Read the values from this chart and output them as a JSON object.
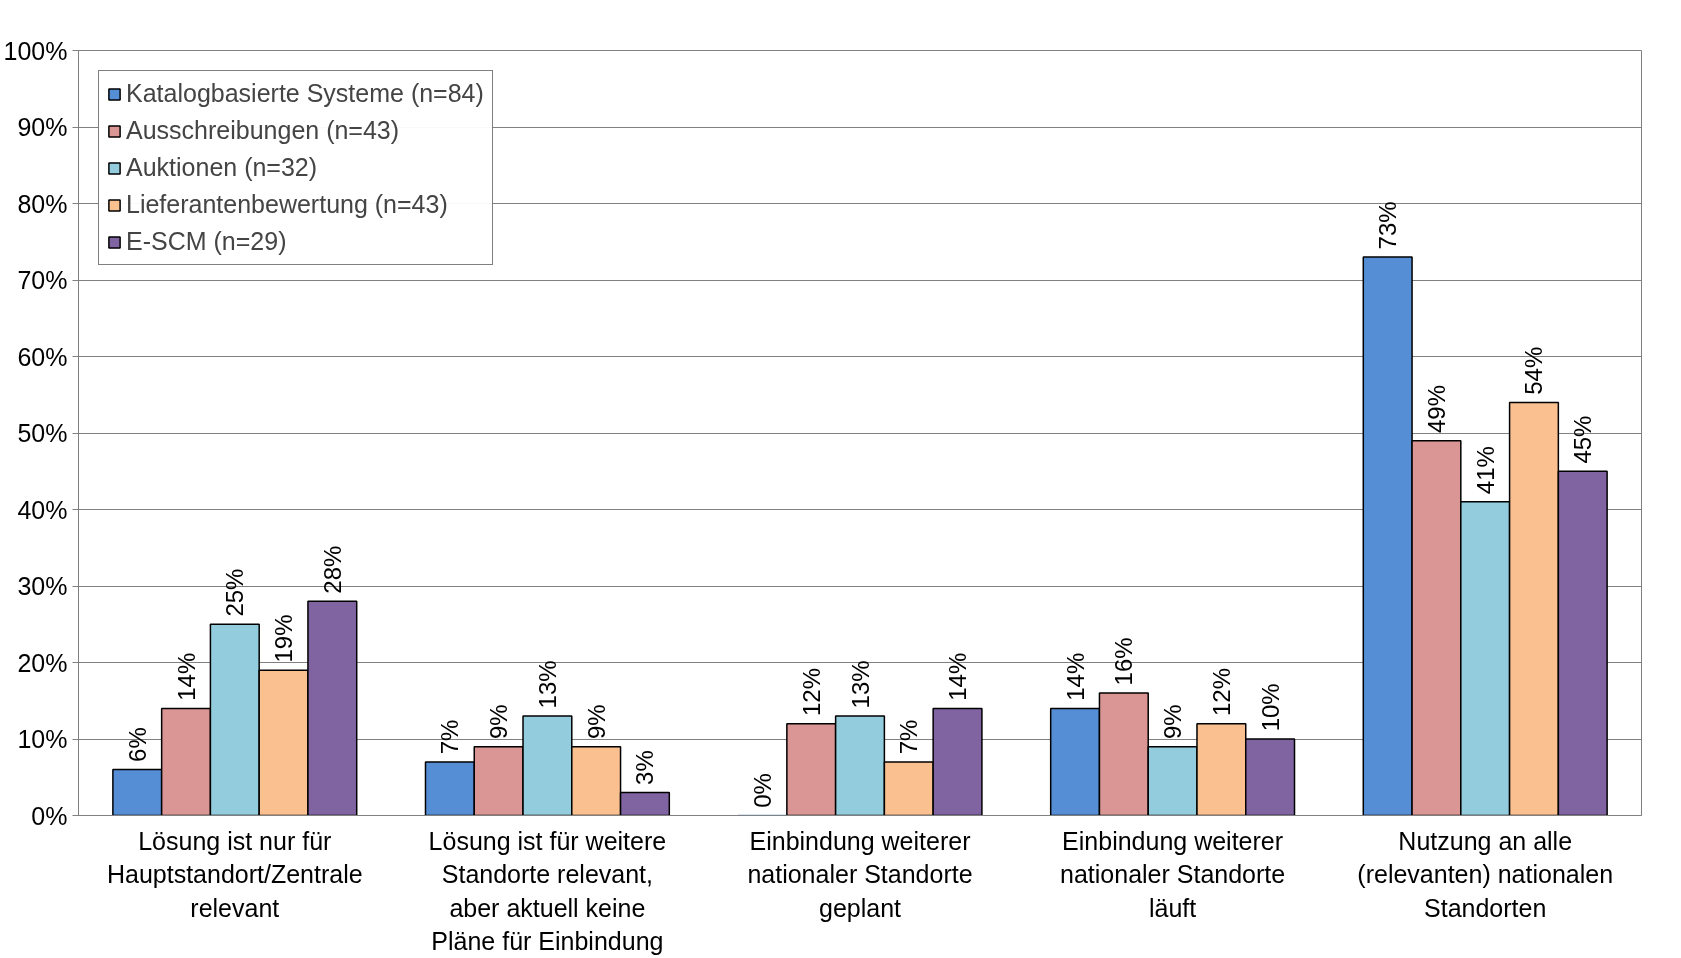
{
  "chart_data": {
    "type": "bar",
    "categories": [
      "Lösung ist nur für Hauptstandort/Zentrale relevant",
      "Lösung ist für weitere Standorte relevant, aber aktuell keine Pläne für Einbindung",
      "Einbindung weiterer nationaler Standorte geplant",
      "Einbindung weiterer nationaler Standorte läuft",
      "Nutzung an alle (relevanten) nationalen Standorten"
    ],
    "series": [
      {
        "name": "Katalogbasierte Systeme (n=84)",
        "color": "#558ed5",
        "values": [
          6,
          7,
          0,
          14,
          73
        ],
        "value_labels": [
          "6%",
          "7%",
          "0%",
          "14%",
          "73%"
        ]
      },
      {
        "name": "Ausschreibungen (n=43)",
        "color": "#d99694",
        "values": [
          14,
          9,
          12,
          16,
          49
        ],
        "value_labels": [
          "14%",
          "9%",
          "12%",
          "16%",
          "49%"
        ]
      },
      {
        "name": "Auktionen (n=32)",
        "color": "#93cddd",
        "values": [
          25,
          13,
          13,
          9,
          41
        ],
        "value_labels": [
          "25%",
          "13%",
          "13%",
          "9%",
          "41%"
        ]
      },
      {
        "name": "Lieferantenbewertung (n=43)",
        "color": "#fac090",
        "values": [
          19,
          9,
          7,
          12,
          54
        ],
        "value_labels": [
          "19%",
          "9%",
          "7%",
          "12%",
          "54%"
        ]
      },
      {
        "name": "E-SCM (n=29)",
        "color": "#8064a2",
        "values": [
          28,
          3,
          14,
          10,
          45
        ],
        "value_labels": [
          "28%",
          "3%",
          "14%",
          "10%",
          "45%"
        ]
      }
    ],
    "ylim": [
      0,
      100
    ],
    "yticks": [
      {
        "value": 0,
        "label": "0%"
      },
      {
        "value": 10,
        "label": "10%"
      },
      {
        "value": 20,
        "label": "20%"
      },
      {
        "value": 30,
        "label": "30%"
      },
      {
        "value": 40,
        "label": "40%"
      },
      {
        "value": 50,
        "label": "50%"
      },
      {
        "value": 60,
        "label": "60%"
      },
      {
        "value": 70,
        "label": "70%"
      },
      {
        "value": 80,
        "label": "80%"
      },
      {
        "value": 90,
        "label": "90%"
      },
      {
        "value": 100,
        "label": "100%"
      }
    ],
    "grid": "y",
    "legend": "top left"
  }
}
